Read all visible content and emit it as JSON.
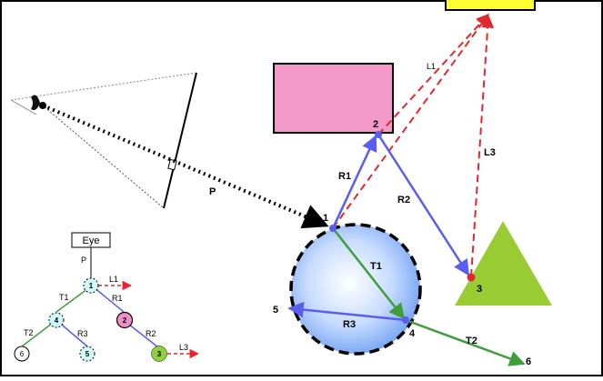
{
  "colors": {
    "ray_blue": "#5a5ef0",
    "transmit_green": "#3f9e3a",
    "shadow_red": "#e0282e",
    "box_pink": "#f39acb",
    "light_yellow": "#ffff33",
    "triangle_green": "#99cc33",
    "sphere_edge": "#3a6fd8",
    "node_cyan": "#cffaf8",
    "node_pink": "#ee8fc8",
    "node_green": "#8ed13a"
  },
  "scene": {
    "ray_labels": {
      "P": "P",
      "R1": "R1",
      "R2": "R2",
      "R3": "R3",
      "T1": "T1",
      "T2": "T2",
      "L1": "L1",
      "L3": "L3"
    },
    "points": {
      "p1": "1",
      "p2": "2",
      "p3": "3",
      "p4": "4",
      "p5": "5",
      "p6": "6"
    }
  },
  "tree": {
    "root": "Eye",
    "edge_labels": {
      "P": "P",
      "T1": "T1",
      "R1": "R1",
      "T2": "T2",
      "R3": "R3",
      "R2": "R2",
      "L1": "L1",
      "L3": "L3"
    },
    "nodes": {
      "n1": "1",
      "n2": "2",
      "n3": "3",
      "n4": "4",
      "n5": "5",
      "n6": "6"
    }
  }
}
